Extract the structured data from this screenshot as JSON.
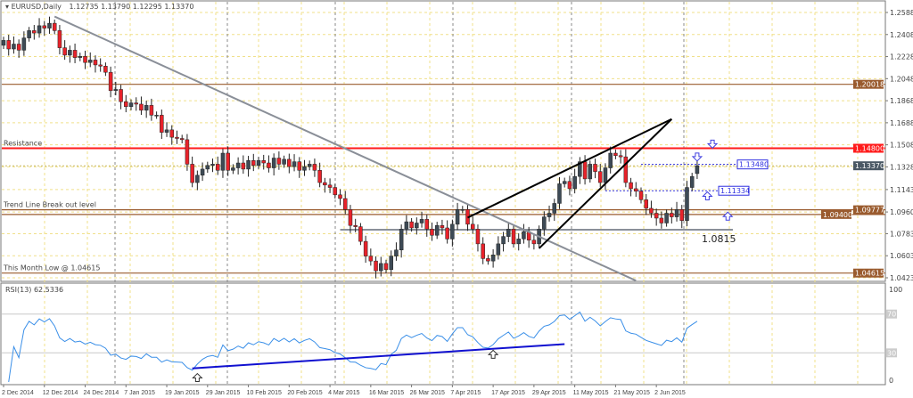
{
  "header": {
    "symbol": "EURUSD,Daily",
    "ohlc": "1.12735 1.13790 1.12295 1.13370"
  },
  "rsi_header": "RSI(13) 62.5336",
  "colors": {
    "bull": "#3d4a55",
    "bear": "#e8222a",
    "resistance": "#ff1a1a",
    "level": "#9a5b2e",
    "current": "#4a5864",
    "blue_line": "#1010d0",
    "rsi_line": "#3a8fe8",
    "grid": "#f0e08a",
    "trend": "#8a8f98"
  },
  "chart_data": {
    "type": "candlestick",
    "title": "EURUSD,Daily",
    "ylim": [
      1.0423,
      1.2588
    ],
    "y_ticks": [
      "1.25880",
      "1.24080",
      "1.22280",
      "1.20480",
      "1.18680",
      "1.16880",
      "1.15080",
      "1.13280",
      "1.11430",
      "1.09600",
      "1.07830",
      "1.06030",
      "1.04230"
    ],
    "x_ticks": [
      "2 Dec 2014",
      "12 Dec 2014",
      "24 Dec 2014",
      "7 Jan 2015",
      "19 Jan 2015",
      "29 Jan 2015",
      "10 Feb 2015",
      "20 Feb 2015",
      "4 Mar 2015",
      "16 Mar 2015",
      "26 Mar 2015",
      "7 Apr 2015",
      "17 Apr 2015",
      "29 Apr 2015",
      "11 May 2015",
      "21 May 2015",
      "2 Jun 2015"
    ],
    "close": [
      1.236,
      1.229,
      1.233,
      1.228,
      1.238,
      1.244,
      1.242,
      1.248,
      1.246,
      1.25,
      1.244,
      1.23,
      1.224,
      1.228,
      1.222,
      1.223,
      1.218,
      1.22,
      1.216,
      1.215,
      1.21,
      1.195,
      1.196,
      1.186,
      1.182,
      1.185,
      1.184,
      1.179,
      1.183,
      1.175,
      1.175,
      1.161,
      1.163,
      1.157,
      1.156,
      1.155,
      1.135,
      1.12,
      1.126,
      1.131,
      1.134,
      1.135,
      1.13,
      1.144,
      1.13,
      1.132,
      1.136,
      1.131,
      1.138,
      1.134,
      1.138,
      1.136,
      1.132,
      1.14,
      1.135,
      1.139,
      1.133,
      1.137,
      1.13,
      1.133,
      1.135,
      1.13,
      1.12,
      1.118,
      1.116,
      1.11,
      1.107,
      1.098,
      1.085,
      1.084,
      1.072,
      1.06,
      1.056,
      1.048,
      1.054,
      1.049,
      1.06,
      1.065,
      1.082,
      1.088,
      1.083,
      1.087,
      1.09,
      1.082,
      1.077,
      1.085,
      1.083,
      1.074,
      1.086,
      1.098,
      1.098,
      1.086,
      1.082,
      1.07,
      1.058,
      1.056,
      1.061,
      1.07,
      1.076,
      1.082,
      1.07,
      1.074,
      1.08,
      1.073,
      1.07,
      1.082,
      1.092,
      1.095,
      1.103,
      1.119,
      1.121,
      1.115,
      1.125,
      1.137,
      1.123,
      1.135,
      1.129,
      1.12,
      1.132,
      1.144,
      1.142,
      1.141,
      1.12,
      1.115,
      1.113,
      1.106,
      1.099,
      1.095,
      1.091,
      1.087,
      1.095,
      1.092,
      1.098,
      1.089,
      1.116,
      1.125,
      1.1337
    ],
    "last_bar": {
      "open": 1.12735,
      "high": 1.1379,
      "low": 1.12295,
      "close": 1.1337
    },
    "levels": [
      {
        "price": 1.20018,
        "label_value": "1.20018",
        "text": "",
        "kind": "level"
      },
      {
        "price": 1.148,
        "label_value": "1.14800",
        "text": "Resistance",
        "kind": "resistance"
      },
      {
        "price": 1.09777,
        "label_value": "1.09777",
        "text": "Trend Line Break out level",
        "kind": "level"
      },
      {
        "price": 1.094,
        "label_value": "1.09400",
        "text": "",
        "kind": "level"
      },
      {
        "price": 1.04615,
        "label_value": "1.04615",
        "text": "This Month Low @ 1.04615",
        "kind": "level"
      }
    ],
    "current_price": "1.13370",
    "support_line": {
      "price": 1.0815,
      "label": "1.0815",
      "from_bar": 66,
      "to_bar": 143
    },
    "price_marks": [
      {
        "price": 1.1348,
        "label": "1.13480",
        "from_bar": 125
      },
      {
        "price": 1.11334,
        "label": "1.11334",
        "from_bar": 118
      }
    ],
    "trend_lines": [
      {
        "from": [
          10,
          1.2555
        ],
        "to": [
          124,
          1.04
        ],
        "color": "trend"
      },
      {
        "from": [
          91,
          1.0914
        ],
        "to": [
          131,
          1.1718
        ],
        "color": "black"
      },
      {
        "from": [
          105,
          1.0663
        ],
        "to": [
          131,
          1.1718
        ],
        "color": "black"
      }
    ],
    "arrows": [
      {
        "bar": 139,
        "price": 1.151,
        "dir": "down"
      },
      {
        "bar": 136,
        "price": 1.1405,
        "dir": "down"
      },
      {
        "bar": 138,
        "price": 1.1095,
        "dir": "up"
      },
      {
        "bar": 142,
        "price": 1.093,
        "dir": "up"
      }
    ],
    "rsi": {
      "period": 13,
      "value": 62.5336,
      "ylim": [
        0,
        100
      ],
      "ticks": [
        "100",
        "70",
        "30",
        "0"
      ],
      "trend_line": {
        "from": [
          37,
          14
        ],
        "to": [
          110,
          39
        ]
      },
      "arrows": [
        {
          "bar": 38,
          "value": 5,
          "dir": "up"
        },
        {
          "bar": 96,
          "value": 29,
          "dir": "up"
        }
      ]
    }
  }
}
